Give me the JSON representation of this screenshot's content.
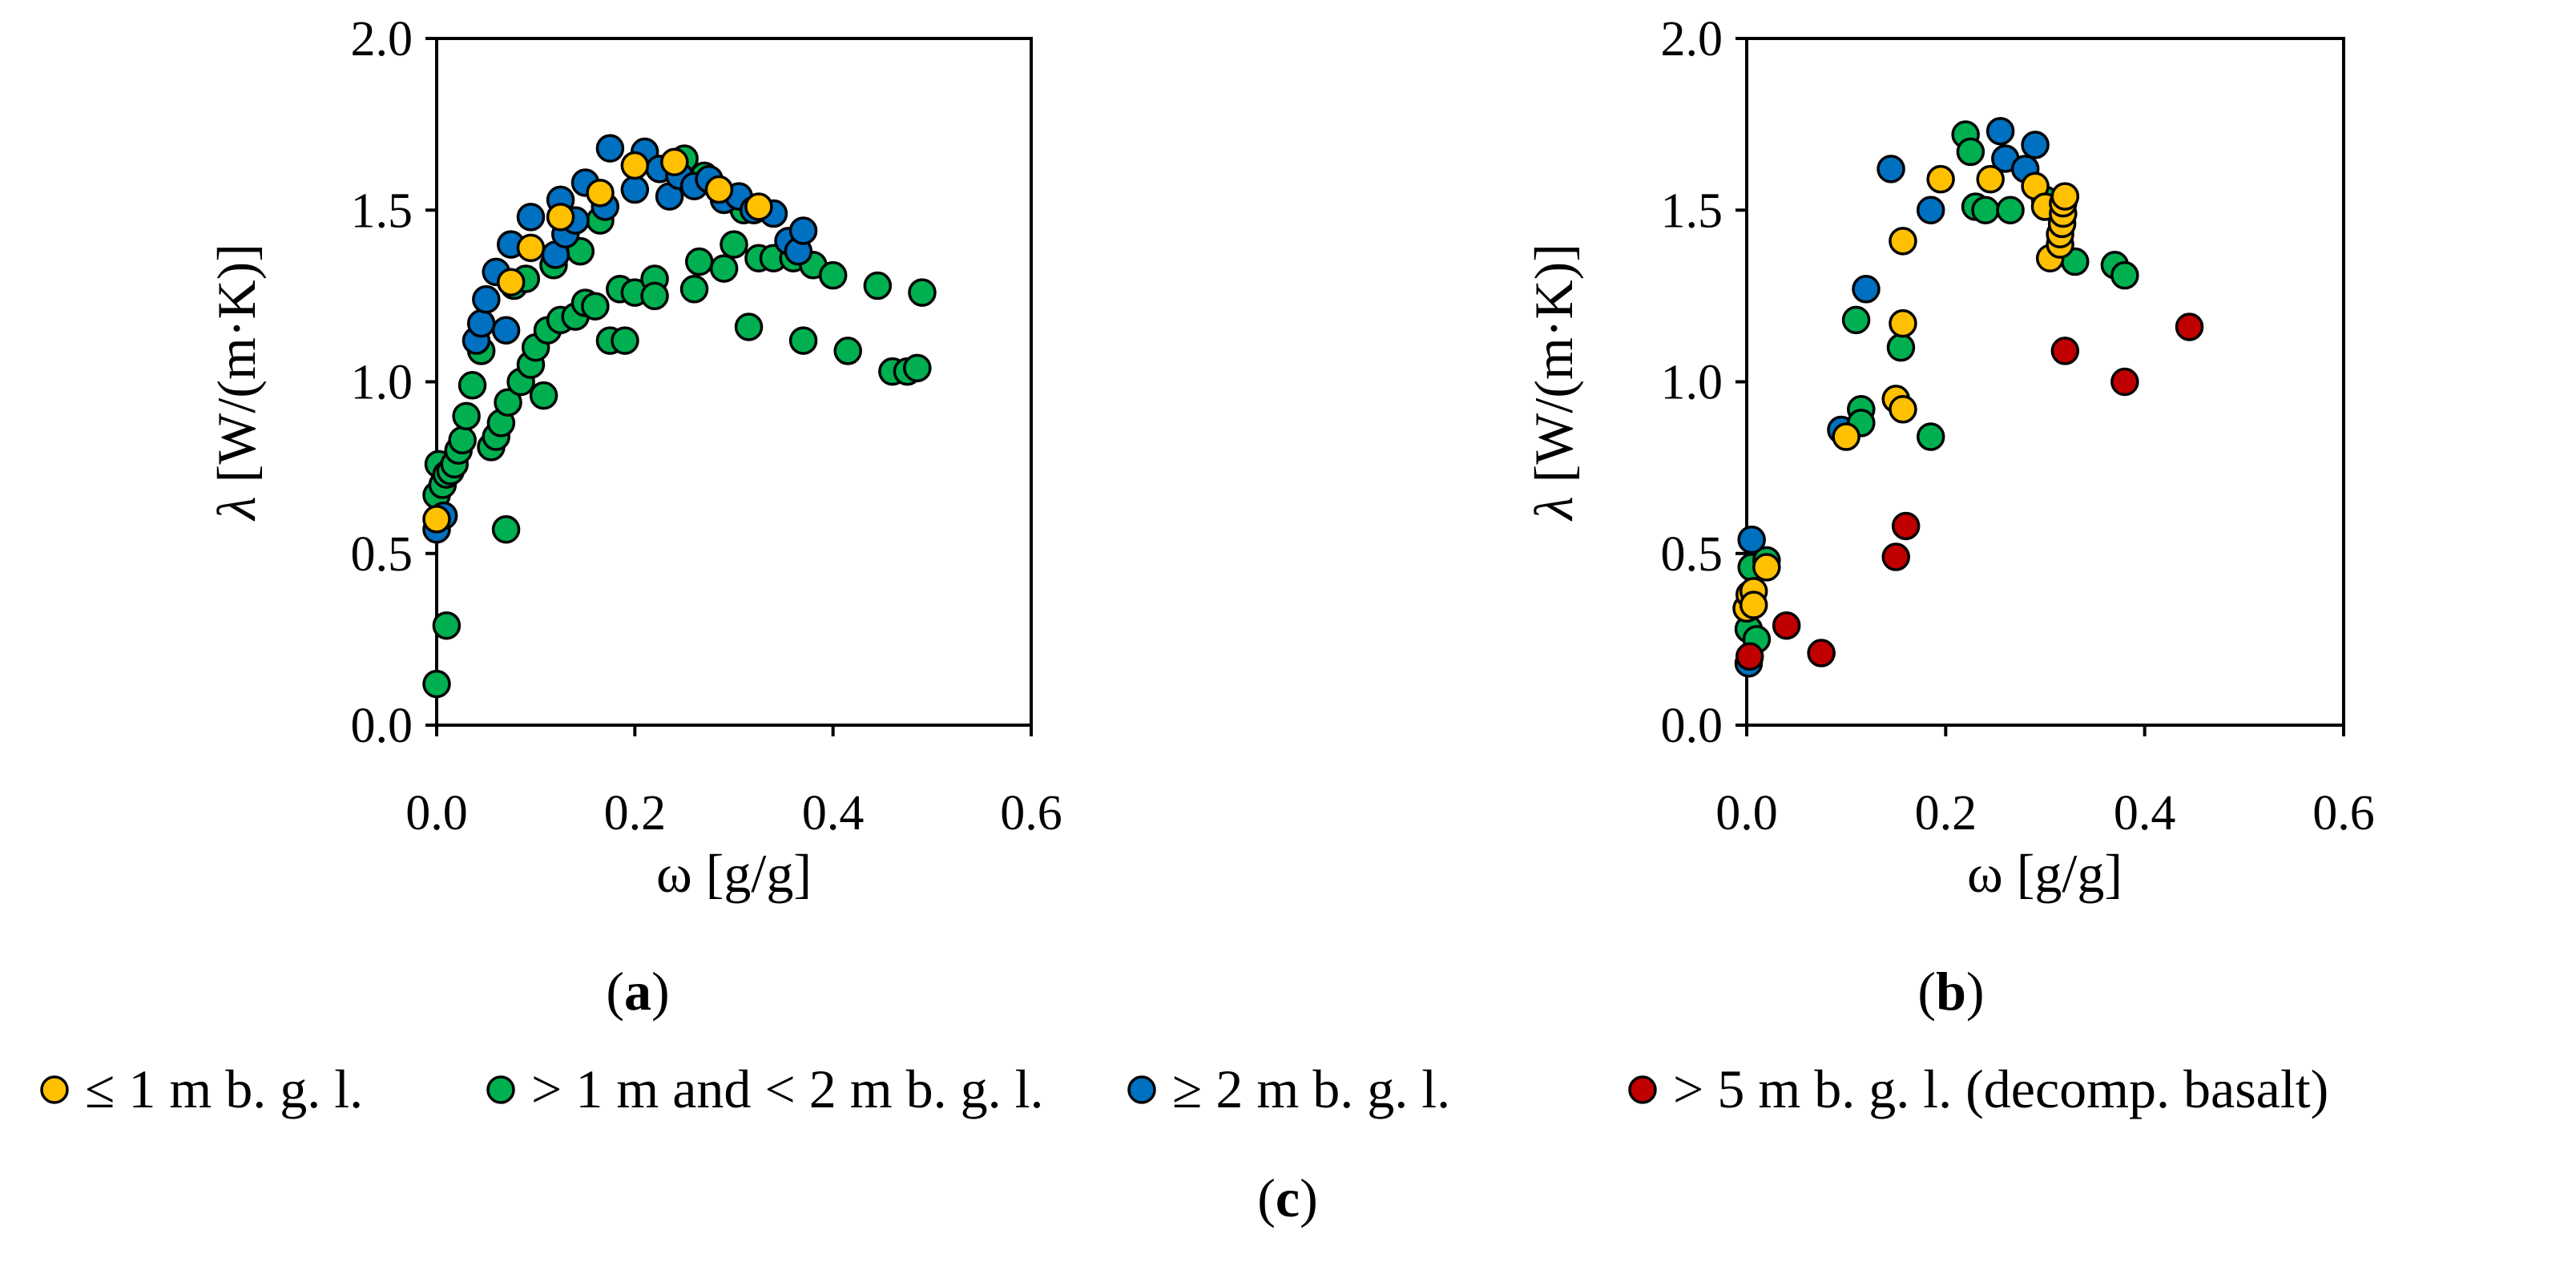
{
  "colors": {
    "le1m": "#FFC000",
    "gt1lt2m": "#00B050",
    "ge2m": "#0070C0",
    "gt5m": "#C00000"
  },
  "legend": {
    "panel_label": "c",
    "items": [
      {
        "key": "le1m",
        "label": "≤ 1 m b. g. l."
      },
      {
        "key": "gt1lt2m",
        "label": "> 1 m and < 2 m b. g. l."
      },
      {
        "key": "ge2m",
        "label": "≥ 2 m b. g. l."
      },
      {
        "key": "gt5m",
        "label": "> 5 m b. g. l. (decomp. basalt)"
      }
    ]
  },
  "chart_data": [
    {
      "type": "scatter",
      "panel_label": "a",
      "xlabel_symbol": "ω",
      "xlabel_unit": " [g/g]",
      "ylabel_symbol": "λ",
      "ylabel_unit": " [W/(m·K)]",
      "xlim": [
        0,
        0.6
      ],
      "ylim": [
        0,
        2.0
      ],
      "xticks": [
        "0.0",
        "0.2",
        "0.4",
        "0.6"
      ],
      "yticks": [
        "0.0",
        "0.5",
        "1.0",
        "1.5",
        "2.0"
      ],
      "series": [
        {
          "name": "> 1 m and < 2 m b. g. l.",
          "key": "gt1lt2m",
          "points": [
            [
              0.0,
              0.12
            ],
            [
              0.01,
              0.29
            ],
            [
              0.0,
              0.67
            ],
            [
              0.002,
              0.76
            ],
            [
              0.006,
              0.7
            ],
            [
              0.01,
              0.73
            ],
            [
              0.014,
              0.74
            ],
            [
              0.018,
              0.76
            ],
            [
              0.022,
              0.8
            ],
            [
              0.026,
              0.83
            ],
            [
              0.03,
              0.9
            ],
            [
              0.036,
              0.99
            ],
            [
              0.045,
              1.09
            ],
            [
              0.055,
              0.81
            ],
            [
              0.06,
              0.84
            ],
            [
              0.065,
              0.88
            ],
            [
              0.07,
              0.57
            ],
            [
              0.072,
              0.94
            ],
            [
              0.078,
              1.28
            ],
            [
              0.085,
              1.0
            ],
            [
              0.09,
              1.3
            ],
            [
              0.095,
              1.05
            ],
            [
              0.1,
              1.1
            ],
            [
              0.108,
              0.96
            ],
            [
              0.112,
              1.15
            ],
            [
              0.118,
              1.34
            ],
            [
              0.125,
              1.18
            ],
            [
              0.14,
              1.19
            ],
            [
              0.145,
              1.38
            ],
            [
              0.15,
              1.23
            ],
            [
              0.16,
              1.22
            ],
            [
              0.165,
              1.47
            ],
            [
              0.175,
              1.12
            ],
            [
              0.185,
              1.27
            ],
            [
              0.19,
              1.12
            ],
            [
              0.2,
              1.26
            ],
            [
              0.22,
              1.3
            ],
            [
              0.22,
              1.25
            ],
            [
              0.25,
              1.65
            ],
            [
              0.26,
              1.27
            ],
            [
              0.265,
              1.35
            ],
            [
              0.27,
              1.6
            ],
            [
              0.29,
              1.33
            ],
            [
              0.3,
              1.4
            ],
            [
              0.31,
              1.5
            ],
            [
              0.315,
              1.16
            ],
            [
              0.325,
              1.36
            ],
            [
              0.34,
              1.36
            ],
            [
              0.36,
              1.36
            ],
            [
              0.37,
              1.12
            ],
            [
              0.38,
              1.34
            ],
            [
              0.4,
              1.31
            ],
            [
              0.415,
              1.09
            ],
            [
              0.445,
              1.28
            ],
            [
              0.46,
              1.03
            ],
            [
              0.475,
              1.03
            ],
            [
              0.485,
              1.04
            ],
            [
              0.49,
              1.26
            ]
          ]
        },
        {
          "name": "≥ 2 m b. g. l.",
          "key": "ge2m",
          "points": [
            [
              0.0,
              0.57
            ],
            [
              0.007,
              0.61
            ],
            [
              0.04,
              1.12
            ],
            [
              0.045,
              1.17
            ],
            [
              0.05,
              1.24
            ],
            [
              0.06,
              1.32
            ],
            [
              0.07,
              1.15
            ],
            [
              0.075,
              1.4
            ],
            [
              0.095,
              1.48
            ],
            [
              0.12,
              1.37
            ],
            [
              0.125,
              1.53
            ],
            [
              0.13,
              1.43
            ],
            [
              0.14,
              1.47
            ],
            [
              0.15,
              1.58
            ],
            [
              0.17,
              1.51
            ],
            [
              0.175,
              1.68
            ],
            [
              0.2,
              1.56
            ],
            [
              0.21,
              1.67
            ],
            [
              0.225,
              1.62
            ],
            [
              0.235,
              1.54
            ],
            [
              0.245,
              1.6
            ],
            [
              0.26,
              1.57
            ],
            [
              0.275,
              1.59
            ],
            [
              0.29,
              1.53
            ],
            [
              0.305,
              1.54
            ],
            [
              0.32,
              1.5
            ],
            [
              0.34,
              1.49
            ],
            [
              0.355,
              1.41
            ],
            [
              0.365,
              1.38
            ],
            [
              0.37,
              1.44
            ]
          ]
        },
        {
          "name": "≤ 1 m b. g. l.",
          "key": "le1m",
          "points": [
            [
              0.0,
              0.6
            ],
            [
              0.075,
              1.29
            ],
            [
              0.095,
              1.39
            ],
            [
              0.125,
              1.48
            ],
            [
              0.165,
              1.55
            ],
            [
              0.2,
              1.63
            ],
            [
              0.24,
              1.64
            ],
            [
              0.285,
              1.56
            ],
            [
              0.325,
              1.51
            ]
          ]
        }
      ]
    },
    {
      "type": "scatter",
      "panel_label": "b",
      "xlabel_symbol": "ω",
      "xlabel_unit": " [g/g]",
      "ylabel_symbol": "λ",
      "ylabel_unit": " [W/(m·K)]",
      "xlim": [
        0,
        0.6
      ],
      "ylim": [
        0,
        2.0
      ],
      "xticks": [
        "0.0",
        "0.2",
        "0.4",
        "0.6"
      ],
      "yticks": [
        "0.0",
        "0.5",
        "1.0",
        "1.5",
        "2.0"
      ],
      "series": [
        {
          "name": "≥ 2 m b. g. l.",
          "key": "ge2m",
          "points": [
            [
              0.002,
              0.18
            ],
            [
              0.005,
              0.54
            ],
            [
              0.095,
              0.86
            ],
            [
              0.12,
              1.27
            ],
            [
              0.145,
              1.62
            ],
            [
              0.185,
              1.5
            ],
            [
              0.255,
              1.73
            ],
            [
              0.26,
              1.65
            ],
            [
              0.28,
              1.62
            ],
            [
              0.29,
              1.69
            ]
          ]
        },
        {
          "name": "> 1 m and < 2 m b. g. l.",
          "key": "gt1lt2m",
          "points": [
            [
              0.002,
              0.28
            ],
            [
              0.005,
              0.46
            ],
            [
              0.01,
              0.25
            ],
            [
              0.02,
              0.48
            ],
            [
              0.11,
              1.18
            ],
            [
              0.115,
              0.92
            ],
            [
              0.115,
              0.88
            ],
            [
              0.155,
              1.1
            ],
            [
              0.185,
              0.84
            ],
            [
              0.22,
              1.72
            ],
            [
              0.225,
              1.67
            ],
            [
              0.23,
              1.51
            ],
            [
              0.24,
              1.5
            ],
            [
              0.265,
              1.5
            ],
            [
              0.3,
              1.53
            ],
            [
              0.33,
              1.35
            ],
            [
              0.37,
              1.34
            ],
            [
              0.38,
              1.31
            ]
          ]
        },
        {
          "name": "≤ 1 m b. g. l.",
          "key": "le1m",
          "points": [
            [
              0.0,
              0.34
            ],
            [
              0.003,
              0.38
            ],
            [
              0.007,
              0.39
            ],
            [
              0.007,
              0.35
            ],
            [
              0.02,
              0.46
            ],
            [
              0.1,
              0.84
            ],
            [
              0.15,
              0.95
            ],
            [
              0.157,
              0.92
            ],
            [
              0.157,
              1.17
            ],
            [
              0.157,
              1.41
            ],
            [
              0.195,
              1.59
            ],
            [
              0.245,
              1.59
            ],
            [
              0.29,
              1.57
            ],
            [
              0.3,
              1.51
            ],
            [
              0.305,
              1.36
            ],
            [
              0.315,
              1.4
            ],
            [
              0.315,
              1.43
            ],
            [
              0.317,
              1.46
            ],
            [
              0.318,
              1.49
            ],
            [
              0.318,
              1.52
            ],
            [
              0.32,
              1.54
            ]
          ]
        },
        {
          "name": "> 5 m b. g. l. (decomp. basalt)",
          "key": "gt5m",
          "points": [
            [
              0.003,
              0.2
            ],
            [
              0.04,
              0.29
            ],
            [
              0.075,
              0.21
            ],
            [
              0.15,
              0.49
            ],
            [
              0.16,
              0.58
            ],
            [
              0.32,
              1.09
            ],
            [
              0.38,
              1.0
            ],
            [
              0.445,
              1.16
            ]
          ]
        }
      ]
    }
  ]
}
